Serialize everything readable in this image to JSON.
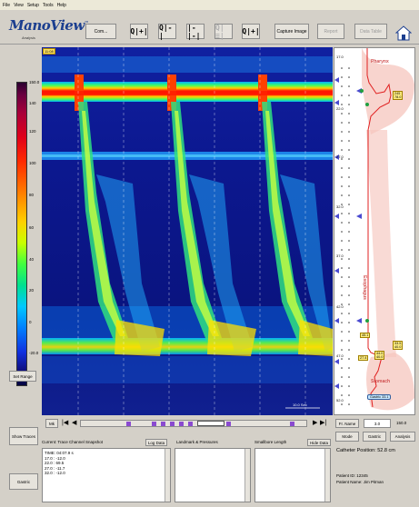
{
  "menu": {
    "items": [
      "File",
      "View",
      "Setup",
      "Tools",
      "Help"
    ]
  },
  "logo": {
    "name": "ManoView",
    "tm": "™",
    "subtitle": "Analysis",
    "version": "v1.2"
  },
  "toolbar": {
    "com_label": "Com...",
    "q1_label": "Q|+|",
    "q2_label": "Q|-|",
    "q3_label": "|-|-|",
    "q4_label": "Q|≡|",
    "q5_label": "Q|+|",
    "capture_label": "Capture Image",
    "report_label": "Report",
    "data_table_label": "Data Table"
  },
  "scale": {
    "ticks": [
      "150.0",
      "140",
      "120",
      "100",
      "80",
      "60",
      "40",
      "20",
      "0",
      "-20.0"
    ],
    "set_range_label": "Set Range"
  },
  "topograph": {
    "corner_label": "11:08",
    "scale_marker": "10.0 Sec",
    "colors": {
      "high": "#ff1400",
      "low": "#101090",
      "mid": "#30d060"
    }
  },
  "position_panel": {
    "depth_ticks": [
      "17.0",
      "22.0",
      "27.0",
      "32.0",
      "37.0",
      "42.0",
      "47.0",
      "52.0"
    ],
    "pharynx_label": "Pharynx",
    "esophagus_label": "Esophagus",
    "stomach_label": "Stomach",
    "ues_values": [
      "245",
      "78.0"
    ],
    "les_values_1": [
      "45.1"
    ],
    "les_values_2": [
      "33.5",
      "40.0"
    ],
    "les_values_3": [
      "27.4",
      "44.0",
      "40.0"
    ],
    "gastric_label": "Gastric 33.1"
  },
  "playback": {
    "mark_label": "Mk",
    "first_label": "|◀",
    "prev_label": "◀",
    "next_label": "▶",
    "last_label": "▶|"
  },
  "right_controls": {
    "fr_name_label": "Fr. Name",
    "fr_value": "3.0",
    "fr_max": "150.0",
    "mode_label": "Mode",
    "gastric_label": "Gastric",
    "analysis_label": "Analysis",
    "catheter_label": "Catheter Position: 52.8 cm",
    "patient_id": "Patient ID: 12345",
    "patient_name": "Patient Name: Jim Pitman"
  },
  "bottom": {
    "show_traces_label": "Show Traces",
    "current_label": "Current: Trace Channel Snapshot",
    "log_data_label": "Log Data",
    "landmark_label": "Landmark & Pressures",
    "smallbore_label": "Smallbore Length",
    "hide_data_label": "Hide Data",
    "gastric_btn_label": "Gastric",
    "snapshot_rows": [
      "TIME: 04:07.9 s",
      "17.0 : -12.0",
      "22.0 : 69.5",
      "27.0 : -11.7",
      "32.0 : -12.0"
    ]
  }
}
